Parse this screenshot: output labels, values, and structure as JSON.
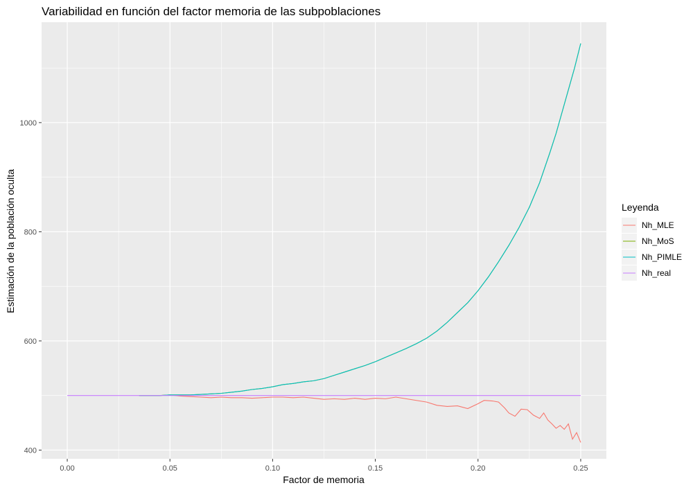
{
  "chart_data": {
    "type": "line",
    "title": "Variabilidad en función del factor memoria de las subpoblaciones",
    "xlabel": "Factor de memoria",
    "ylabel": "Estimación de la población oculta",
    "xlim": [
      -0.0125,
      0.2625
    ],
    "ylim": [
      384,
      1184
    ],
    "x_ticks": [
      0.0,
      0.05,
      0.1,
      0.15,
      0.2,
      0.25
    ],
    "x_tick_labels": [
      "0.00",
      "0.05",
      "0.10",
      "0.15",
      "0.20",
      "0.25"
    ],
    "y_ticks": [
      400,
      600,
      800,
      1000
    ],
    "y_tick_labels": [
      "400",
      "600",
      "800",
      "1000"
    ],
    "grid": true,
    "legend": {
      "title": "Leyenda",
      "position": "right"
    },
    "series": [
      {
        "name": "Nh_MLE",
        "color": "#F8766D",
        "x": [
          0.035,
          0.045,
          0.05,
          0.055,
          0.06,
          0.065,
          0.07,
          0.075,
          0.08,
          0.085,
          0.09,
          0.095,
          0.1,
          0.105,
          0.11,
          0.115,
          0.12,
          0.125,
          0.13,
          0.135,
          0.14,
          0.145,
          0.15,
          0.155,
          0.16,
          0.165,
          0.17,
          0.175,
          0.18,
          0.185,
          0.19,
          0.195,
          0.2,
          0.203,
          0.207,
          0.21,
          0.213,
          0.215,
          0.218,
          0.221,
          0.224,
          0.227,
          0.23,
          0.232,
          0.234,
          0.236,
          0.238,
          0.24,
          0.242,
          0.244,
          0.246,
          0.248,
          0.25
        ],
        "y": [
          500,
          500,
          501,
          499,
          498,
          497,
          496,
          497,
          496,
          496,
          495,
          496,
          497,
          497,
          496,
          497,
          495,
          493,
          494,
          493,
          495,
          493,
          495,
          494,
          497,
          494,
          491,
          488,
          482,
          480,
          481,
          476,
          485,
          491,
          490,
          488,
          477,
          468,
          462,
          475,
          474,
          464,
          458,
          468,
          455,
          448,
          440,
          445,
          438,
          448,
          420,
          432,
          414
        ]
      },
      {
        "name": "Nh_MoS",
        "color": "#7CAE00",
        "x": [
          0.035,
          0.04,
          0.045,
          0.05,
          0.055,
          0.06,
          0.065,
          0.07,
          0.075,
          0.08,
          0.085,
          0.09,
          0.095,
          0.1,
          0.105,
          0.11,
          0.115,
          0.12,
          0.125,
          0.13,
          0.135,
          0.14,
          0.145,
          0.15,
          0.155,
          0.16,
          0.165,
          0.17,
          0.175,
          0.18,
          0.185,
          0.19,
          0.195,
          0.2,
          0.205,
          0.21,
          0.215,
          0.22,
          0.225,
          0.23,
          0.235,
          0.238,
          0.241,
          0.244,
          0.247,
          0.25
        ],
        "y": [
          500,
          500,
          500,
          501,
          501,
          501,
          502,
          503,
          504,
          506,
          508,
          511,
          513,
          516,
          520,
          522,
          525,
          527,
          531,
          537,
          543,
          549,
          555,
          562,
          570,
          578,
          586,
          595,
          605,
          618,
          634,
          652,
          670,
          692,
          717,
          745,
          775,
          808,
          845,
          890,
          945,
          980,
          1020,
          1060,
          1100,
          1145
        ]
      },
      {
        "name": "Nh_PIMLE",
        "color": "#00BFC4",
        "x": [
          0.035,
          0.04,
          0.045,
          0.05,
          0.055,
          0.06,
          0.065,
          0.07,
          0.075,
          0.08,
          0.085,
          0.09,
          0.095,
          0.1,
          0.105,
          0.11,
          0.115,
          0.12,
          0.125,
          0.13,
          0.135,
          0.14,
          0.145,
          0.15,
          0.155,
          0.16,
          0.165,
          0.17,
          0.175,
          0.18,
          0.185,
          0.19,
          0.195,
          0.2,
          0.205,
          0.21,
          0.215,
          0.22,
          0.225,
          0.23,
          0.235,
          0.238,
          0.241,
          0.244,
          0.247,
          0.25
        ],
        "y": [
          500,
          500,
          500,
          501,
          501,
          501,
          502,
          503,
          504,
          506,
          508,
          511,
          513,
          516,
          520,
          522,
          525,
          527,
          531,
          537,
          543,
          549,
          555,
          562,
          570,
          578,
          586,
          595,
          605,
          618,
          634,
          652,
          670,
          692,
          717,
          745,
          775,
          808,
          845,
          890,
          945,
          980,
          1020,
          1060,
          1100,
          1145
        ]
      },
      {
        "name": "Nh_real",
        "color": "#C77CFF",
        "x": [
          0.0,
          0.25
        ],
        "y": [
          500,
          500
        ]
      }
    ]
  }
}
